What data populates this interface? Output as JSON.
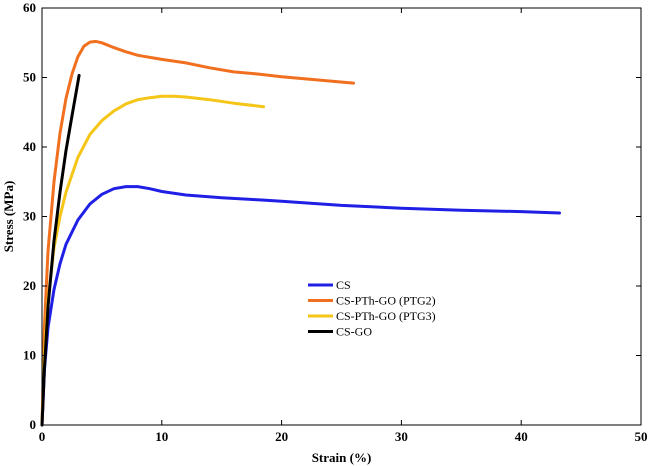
{
  "chart_data": {
    "type": "line",
    "xlabel": "Strain (%)",
    "ylabel": "Stress (MPa)",
    "xlim": [
      0,
      50
    ],
    "ylim": [
      0,
      60
    ],
    "xticks": [
      0,
      10,
      20,
      30,
      40,
      50
    ],
    "yticks": [
      0,
      10,
      20,
      30,
      40,
      50,
      60
    ],
    "grid": false,
    "legend_position": "center",
    "series": [
      {
        "name": "CS",
        "color": "#1f1fe6",
        "x": [
          0,
          0.2,
          0.5,
          1,
          1.5,
          2,
          3,
          4,
          5,
          6,
          7,
          8,
          9,
          10,
          12,
          15,
          18,
          20,
          25,
          30,
          35,
          40,
          43.2
        ],
        "y": [
          0,
          8,
          14,
          19.5,
          23.2,
          26,
          29.5,
          31.8,
          33.2,
          34,
          34.3,
          34.3,
          34,
          33.6,
          33.1,
          32.7,
          32.4,
          32.2,
          31.6,
          31.2,
          30.9,
          30.7,
          30.5
        ]
      },
      {
        "name": "CS-PTh-GO (PTG2)",
        "color": "#f07020",
        "x": [
          0,
          0.2,
          0.5,
          1,
          1.5,
          2,
          2.5,
          3,
          3.5,
          4,
          4.5,
          5,
          6,
          7,
          8,
          10,
          12,
          14,
          16,
          18,
          20,
          22,
          24,
          26
        ],
        "y": [
          0,
          14,
          25,
          35,
          42,
          47,
          50.5,
          53,
          54.5,
          55.1,
          55.2,
          55,
          54.3,
          53.7,
          53.2,
          52.6,
          52.1,
          51.4,
          50.8,
          50.5,
          50.1,
          49.8,
          49.5,
          49.2
        ]
      },
      {
        "name": "CS-PTh-GO (PTG3)",
        "color": "#f5c518",
        "x": [
          0,
          0.2,
          0.5,
          1,
          1.5,
          2,
          3,
          4,
          5,
          6,
          7,
          8,
          9,
          10,
          11,
          12,
          14,
          16,
          18.5
        ],
        "y": [
          0,
          10,
          18,
          25.5,
          30,
          33.5,
          38.5,
          41.8,
          43.8,
          45.2,
          46.2,
          46.8,
          47.1,
          47.3,
          47.3,
          47.2,
          46.8,
          46.3,
          45.8
        ]
      },
      {
        "name": "CS-GO",
        "color": "#000000",
        "x": [
          0,
          0.2,
          0.5,
          1,
          1.5,
          2,
          2.5,
          3.1
        ],
        "y": [
          0,
          8,
          17,
          26.5,
          33.5,
          39.5,
          44.5,
          50.3
        ]
      }
    ]
  }
}
